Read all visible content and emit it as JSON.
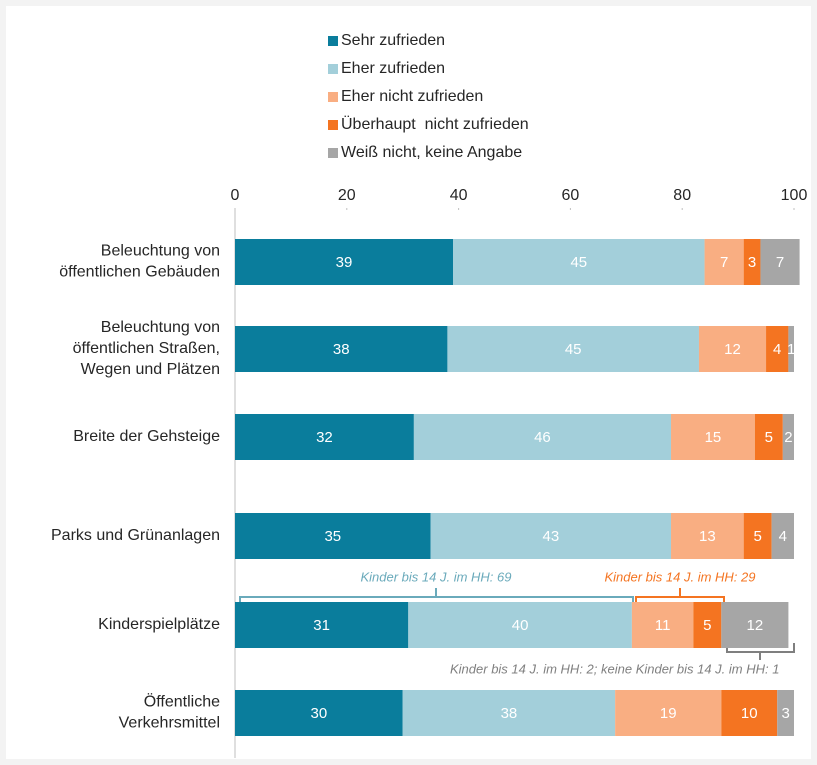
{
  "chart_data": {
    "type": "stacked_bar_horizontal",
    "categories": [
      "Beleuchtung von\nöffentlichen Gebäuden",
      "Beleuchtung von\nöffentlichen Straßen,\nWegen und Plätzen",
      "Breite der Gehsteige",
      "Parks und Grünanlagen",
      "Kinderspielplätze",
      "Öffentliche\nVerkehrsmittel"
    ],
    "series": [
      {
        "name": "Sehr zufrieden",
        "color": "#0a7d9c",
        "values": [
          39,
          38,
          32,
          35,
          31,
          30
        ]
      },
      {
        "name": "Eher zufrieden",
        "color": "#a3cfda",
        "values": [
          45,
          45,
          46,
          43,
          40,
          38
        ]
      },
      {
        "name": "Eher nicht zufrieden",
        "color": "#f9ae82",
        "values": [
          7,
          12,
          15,
          13,
          11,
          19
        ]
      },
      {
        "name": "Überhaupt  nicht zufrieden",
        "color": "#f47421",
        "values": [
          3,
          4,
          5,
          5,
          5,
          10
        ]
      },
      {
        "name": "Weiß nicht, keine Angabe",
        "color": "#a6a6a6",
        "values": [
          7,
          1,
          2,
          4,
          12,
          3
        ]
      }
    ],
    "xlim": [
      0,
      100
    ],
    "xticks": [
      0,
      20,
      40,
      60,
      80,
      100
    ],
    "annotations": [
      "Kinder bis 14 J. im HH: 69",
      "Kinder bis 14 J. im HH: 29",
      "Kinder bis 14 J. im HH: 2; keine Kinder bis 14 J. im HH: 1"
    ]
  }
}
